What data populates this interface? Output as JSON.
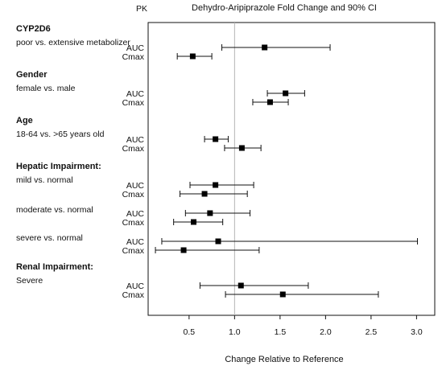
{
  "chart_data": {
    "type": "forest",
    "title": "Dehydro-Aripiprazole Fold Change and 90% CI",
    "column_header": "PK",
    "xlabel": "Change Relative to Reference",
    "xlim": [
      0.05,
      3.2
    ],
    "xticks": [
      0.5,
      1.0,
      1.5,
      2.0,
      2.5,
      3.0
    ],
    "xtick_labels": [
      "0.5",
      "1.0",
      "1.5",
      "2.0",
      "2.5",
      "3.0"
    ],
    "reference_line": 1.0,
    "groups": [
      {
        "label": "CYP2D6",
        "comparisons": [
          {
            "label": "poor vs. extensive metabolizer",
            "rows": [
              {
                "pk": "AUC",
                "estimate": 1.33,
                "lower": 0.86,
                "upper": 2.05
              },
              {
                "pk": "Cmax",
                "estimate": 0.54,
                "lower": 0.37,
                "upper": 0.75
              }
            ]
          }
        ]
      },
      {
        "label": "Gender",
        "comparisons": [
          {
            "label": "female vs. male",
            "rows": [
              {
                "pk": "AUC",
                "estimate": 1.56,
                "lower": 1.36,
                "upper": 1.77
              },
              {
                "pk": "Cmax",
                "estimate": 1.39,
                "lower": 1.2,
                "upper": 1.59
              }
            ]
          }
        ]
      },
      {
        "label": "Age",
        "comparisons": [
          {
            "label": "18-64 vs. >65 years old",
            "rows": [
              {
                "pk": "AUC",
                "estimate": 0.79,
                "lower": 0.67,
                "upper": 0.93
              },
              {
                "pk": "Cmax",
                "estimate": 1.08,
                "lower": 0.89,
                "upper": 1.29
              }
            ]
          }
        ]
      },
      {
        "label": "Hepatic Impairment:",
        "comparisons": [
          {
            "label": "mild vs. normal",
            "rows": [
              {
                "pk": "AUC",
                "estimate": 0.79,
                "lower": 0.51,
                "upper": 1.21
              },
              {
                "pk": "Cmax",
                "estimate": 0.67,
                "lower": 0.4,
                "upper": 1.14
              }
            ]
          },
          {
            "label": "moderate vs. normal",
            "rows": [
              {
                "pk": "AUC",
                "estimate": 0.73,
                "lower": 0.46,
                "upper": 1.17
              },
              {
                "pk": "Cmax",
                "estimate": 0.55,
                "lower": 0.33,
                "upper": 0.87
              }
            ]
          },
          {
            "label": "severe vs. normal",
            "rows": [
              {
                "pk": "AUC",
                "estimate": 0.82,
                "lower": 0.2,
                "upper": 3.01
              },
              {
                "pk": "Cmax",
                "estimate": 0.44,
                "lower": 0.13,
                "upper": 1.27
              }
            ]
          }
        ]
      },
      {
        "label": "Renal Impairment:",
        "comparisons": [
          {
            "label": "Severe",
            "rows": [
              {
                "pk": "AUC",
                "estimate": 1.07,
                "lower": 0.62,
                "upper": 1.81
              },
              {
                "pk": "Cmax",
                "estimate": 1.53,
                "lower": 0.9,
                "upper": 2.58
              }
            ]
          }
        ]
      }
    ]
  }
}
